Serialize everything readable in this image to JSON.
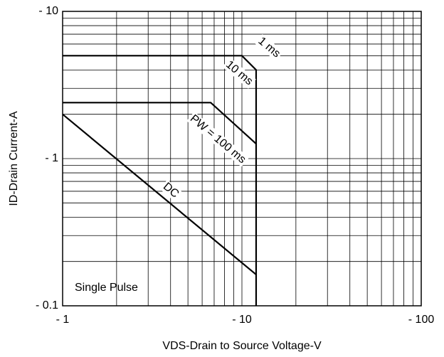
{
  "chart_data": {
    "type": "line",
    "x_label": "VDS-Drain to Source Voltage-V",
    "y_label": "ID-Drain Current-A",
    "xscale": "log",
    "yscale": "log",
    "grid": true,
    "xlim": [
      -1,
      -100
    ],
    "ylim": [
      -0.1,
      -10
    ],
    "xticks": [
      {
        "value": -1,
        "label": "- 1"
      },
      {
        "value": -10,
        "label": "- 10"
      },
      {
        "value": -100,
        "label": "- 100"
      }
    ],
    "yticks": [
      {
        "value": -0.1,
        "label": "- 0.1"
      },
      {
        "value": -1,
        "label": "- 1"
      },
      {
        "value": -10,
        "label": "- 10"
      }
    ],
    "series": [
      {
        "name": "10 ms",
        "color": "#000000",
        "x": [
          -1,
          -10,
          -12,
          -12
        ],
        "values": [
          -5,
          -5,
          -4,
          -0.1
        ]
      },
      {
        "name": "PW = 100 ms",
        "color": "#000000",
        "x": [
          -1,
          -6.7,
          -12
        ],
        "values": [
          -2.4,
          -2.4,
          -1.26
        ]
      },
      {
        "name": "DC",
        "color": "#000000",
        "x": [
          -1,
          -12
        ],
        "values": [
          -2.0,
          -0.163
        ]
      }
    ],
    "annotations": [
      "1 ms",
      "Single Pulse"
    ]
  }
}
